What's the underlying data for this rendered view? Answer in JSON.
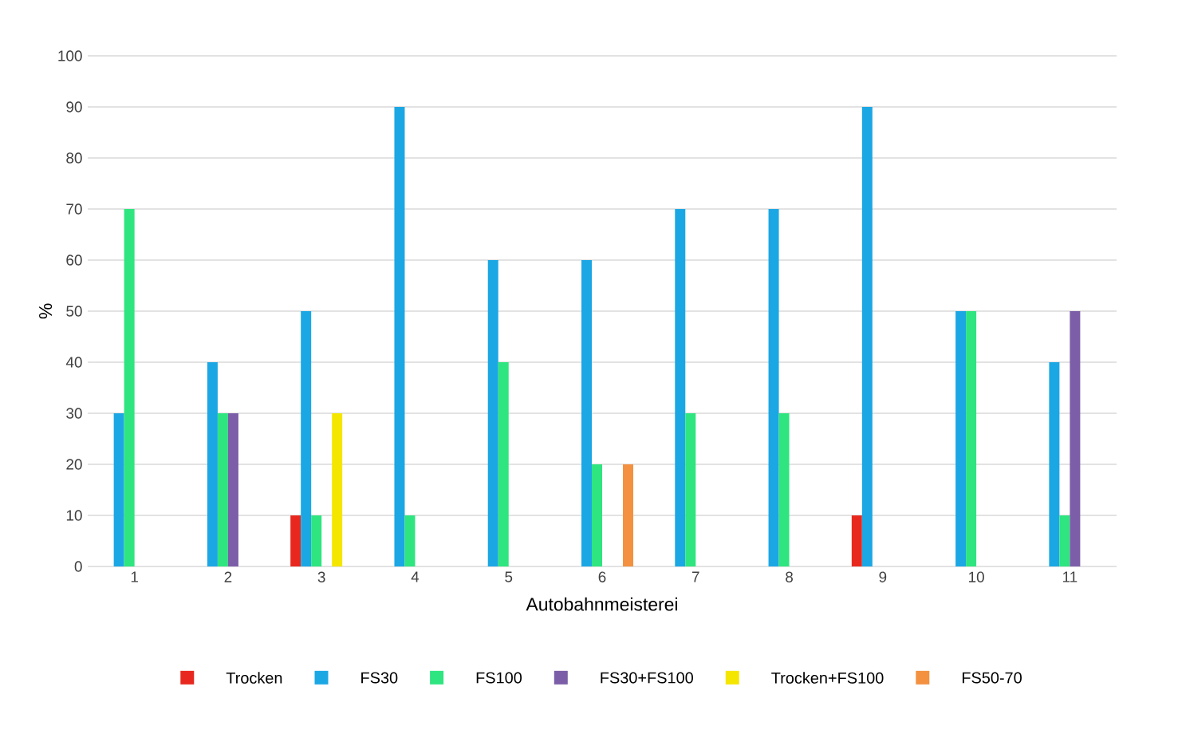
{
  "chart_data": {
    "type": "bar",
    "xlabel": "Autobahnmeisterei",
    "ylabel": "%",
    "categories": [
      "1",
      "2",
      "3",
      "4",
      "5",
      "6",
      "7",
      "8",
      "9",
      "10",
      "11"
    ],
    "series": [
      {
        "name": "Trocken",
        "color": "#e8281e",
        "values": [
          null,
          null,
          10,
          null,
          null,
          null,
          null,
          null,
          10,
          null,
          null
        ]
      },
      {
        "name": "FS30",
        "color": "#1ba7e4",
        "values": [
          30,
          40,
          50,
          90,
          60,
          60,
          70,
          70,
          90,
          50,
          40
        ]
      },
      {
        "name": "FS100",
        "color": "#2ee57f",
        "values": [
          70,
          30,
          10,
          10,
          40,
          20,
          30,
          30,
          null,
          50,
          10
        ]
      },
      {
        "name": "FS30+FS100",
        "color": "#7b5ea7",
        "values": [
          null,
          30,
          null,
          null,
          null,
          null,
          null,
          null,
          null,
          null,
          50
        ]
      },
      {
        "name": "Trocken+FS100",
        "color": "#f5e600",
        "values": [
          null,
          null,
          30,
          null,
          null,
          null,
          null,
          null,
          null,
          null,
          null
        ]
      },
      {
        "name": "FS50-70",
        "color": "#f39140",
        "values": [
          null,
          null,
          null,
          null,
          null,
          20,
          null,
          null,
          null,
          null,
          null
        ]
      }
    ],
    "ylim": [
      0,
      100
    ],
    "yticks": [
      0,
      10,
      20,
      30,
      40,
      50,
      60,
      70,
      80,
      90,
      100
    ],
    "grid": "y",
    "legend": "bottom"
  }
}
